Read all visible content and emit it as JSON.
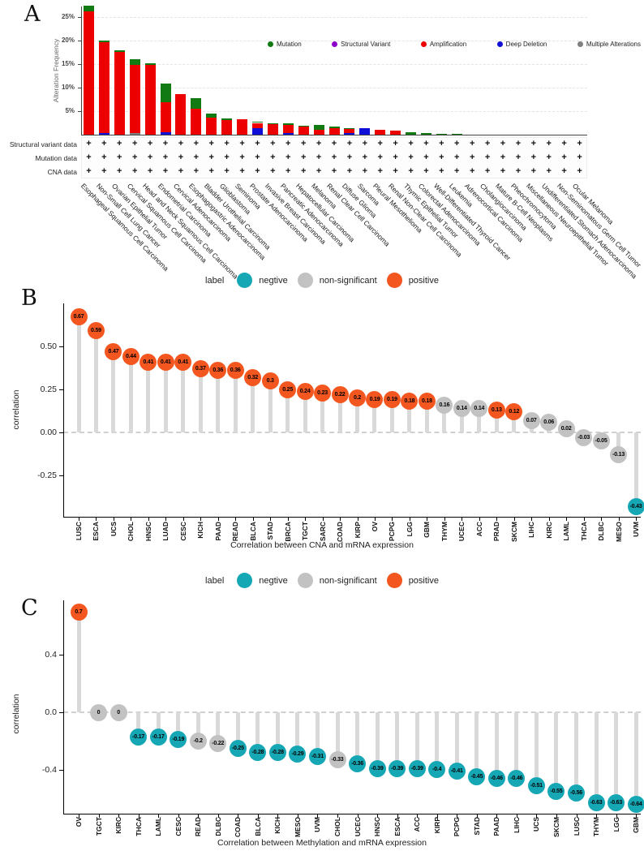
{
  "colors": {
    "mutation": "#127a12",
    "structural_variant": "#8b00c9",
    "amplification": "#ec0000",
    "deep_deletion": "#0f0fd8",
    "multiple": "#7f7f7f",
    "negative": "#16a7b5",
    "nonsig": "#c2c2c2",
    "positive": "#f3571f",
    "stem": "#d9d9d9"
  },
  "panelA": {
    "label": "A",
    "ylabel": "Alteration Frequency",
    "yticks": [
      {
        "v": 25,
        "t": "25%"
      },
      {
        "v": 20,
        "t": "20%"
      },
      {
        "v": 15,
        "t": "15%"
      },
      {
        "v": 10,
        "t": "10%"
      },
      {
        "v": 5,
        "t": "5%"
      }
    ],
    "legend": [
      {
        "key": "mutation",
        "label": "Mutation"
      },
      {
        "key": "structural_variant",
        "label": "Structural Variant"
      },
      {
        "key": "amplification",
        "label": "Amplification"
      },
      {
        "key": "deep_deletion",
        "label": "Deep Deletion"
      },
      {
        "key": "multiple",
        "label": "Multiple Alterations"
      }
    ],
    "tracks": [
      {
        "label": "Structural variant data"
      },
      {
        "label": "Mutation data"
      },
      {
        "label": "CNA data"
      }
    ],
    "plus_symbol": "+",
    "chart_data": {
      "type": "bar",
      "stacked": true,
      "ylabel": "Alteration Frequency",
      "ylim": [
        0,
        28
      ],
      "categories": [
        "Esophageal Squamous Cell Carcinoma",
        "Non-Small Cell Lung Cancer",
        "Ovarian Epithelial Tumor",
        "Cervical Squamous Cell Carcinoma",
        "Head and Neck Squamous Cell Carcinoma",
        "Endometrial Carcinoma",
        "Cervical Adenocarcinoma",
        "Esophagogastric Adenocarcinoma",
        "Bladder Urothelial Carcinoma",
        "Glioblastoma",
        "Seminoma",
        "Prostate Adenocarcinoma",
        "Invasive Breast Carcinoma",
        "Pancreatic Adenocarcinoma",
        "Hepatocellular Carcinoma",
        "Melanoma",
        "Renal Clear Cell Carcinoma",
        "Diffuse Glioma",
        "Sarcoma",
        "Pleural Mesothelioma",
        "Renal Non-Clear Cell Carcinoma",
        "Thymic Epithelial Tumor",
        "Colorectal Adenocarcinoma",
        "Well-Differentiated Thyroid Cancer",
        "Leukemia",
        "Adrenocortical Carcinoma",
        "Cholangiocarcinoma",
        "Mature B-Cell Neoplasms",
        "Pheochromocytoma",
        "Miscellaneous Neuroepithelial Tumor",
        "Undifferentiated Stomach Adenocarcinoma",
        "Non-Seminomatous Germ Cell Tumor",
        "Ocular Melanoma"
      ],
      "series": [
        {
          "name": "Multiple Alterations",
          "key": "multiple",
          "values": [
            0,
            0,
            0,
            0.4,
            0,
            0,
            0,
            0,
            0,
            0,
            0,
            0,
            0,
            0,
            0,
            0,
            0,
            0,
            0,
            0,
            0,
            0,
            0,
            0,
            0,
            0,
            0,
            0,
            0,
            0,
            0,
            0,
            0
          ]
        },
        {
          "name": "Deep Deletion",
          "key": "deep_deletion",
          "values": [
            0,
            0.4,
            0,
            0,
            0,
            0.5,
            0,
            0,
            0,
            0,
            0,
            1.3,
            0,
            0.3,
            0,
            0,
            0,
            0.3,
            1.3,
            0,
            0,
            0,
            0,
            0,
            0,
            0,
            0,
            0,
            0,
            0,
            0,
            0,
            0
          ]
        },
        {
          "name": "Amplification",
          "key": "amplification",
          "values": [
            26.2,
            19.2,
            17.6,
            14.4,
            14.9,
            6.4,
            8.7,
            5.6,
            3.7,
            3.1,
            3.2,
            1.2,
            2.2,
            1.7,
            1.7,
            1.0,
            1.4,
            0.9,
            0,
            1.0,
            0.9,
            0,
            0,
            0,
            0,
            0,
            0,
            0,
            0,
            0,
            0,
            0,
            0
          ]
        },
        {
          "name": "Mutation",
          "key": "mutation",
          "values": [
            1.2,
            0.4,
            0.4,
            1.2,
            0.3,
            3.9,
            0,
            2.2,
            0.8,
            0.3,
            0,
            0.3,
            0.2,
            0.5,
            0.2,
            1.1,
            0.4,
            0.2,
            0,
            0,
            0,
            0.5,
            0.3,
            0.1,
            0.1,
            0,
            0,
            0,
            0,
            0,
            0,
            0,
            0
          ]
        }
      ]
    }
  },
  "panelB": {
    "label": "B",
    "legend": {
      "title": "label",
      "items": [
        {
          "key": "negative",
          "label": "negtive"
        },
        {
          "key": "nonsig",
          "label": "non-significant"
        },
        {
          "key": "positive",
          "label": "positive"
        }
      ]
    },
    "ylabel": "correlation",
    "xlabel": "Correlation between CNA and mRNA expression",
    "yticks": [
      {
        "v": 0.5,
        "t": "0.50"
      },
      {
        "v": 0.25,
        "t": "0.25"
      },
      {
        "v": 0,
        "t": "0.00"
      },
      {
        "v": -0.25,
        "t": "-0.25"
      }
    ],
    "chart_data": {
      "type": "lollipop",
      "categories": [
        "LUSC",
        "ESCA",
        "UCS",
        "CHOL",
        "HNSC",
        "LUAD",
        "CESC",
        "KICH",
        "PAAD",
        "READ",
        "BLCA",
        "STAD",
        "BRCA",
        "TGCT",
        "SARC",
        "COAD",
        "KIRP",
        "OV",
        "PCPG",
        "LGG",
        "GBM",
        "THYM",
        "UCEC",
        "ACC",
        "PRAD",
        "SKCM",
        "LIHC",
        "KIRC",
        "LAML",
        "THCA",
        "DLBC",
        "MESO",
        "UVM"
      ],
      "values": [
        0.67,
        0.59,
        0.47,
        0.44,
        0.41,
        0.41,
        0.41,
        0.37,
        0.36,
        0.36,
        0.32,
        0.3,
        0.25,
        0.24,
        0.23,
        0.22,
        0.2,
        0.19,
        0.19,
        0.18,
        0.18,
        0.16,
        0.14,
        0.14,
        0.13,
        0.12,
        0.07,
        0.06,
        0.02,
        -0.03,
        -0.05,
        -0.13,
        -0.43
      ],
      "point_labels": [
        "0.67",
        "0.59",
        "0.47",
        "0.44",
        "0.41",
        "0.41",
        "0.41",
        "0.37",
        "0.36",
        "0.36",
        "0.32",
        "0.3",
        "0.25",
        "0.24",
        "0.23",
        "0.22",
        "0.2",
        "0.19",
        "0.19",
        "0.18",
        "0.18",
        "0.16",
        "0.14",
        "0.14",
        "0.13",
        "0.12",
        "0.07",
        "0.06",
        "0.02",
        "-0.03",
        "-0.05",
        "-0.13",
        "-0.43"
      ],
      "classes": [
        "positive",
        "positive",
        "positive",
        "positive",
        "positive",
        "positive",
        "positive",
        "positive",
        "positive",
        "positive",
        "positive",
        "positive",
        "positive",
        "positive",
        "positive",
        "positive",
        "positive",
        "positive",
        "positive",
        "positive",
        "positive",
        "nonsig",
        "nonsig",
        "nonsig",
        "positive",
        "positive",
        "nonsig",
        "nonsig",
        "nonsig",
        "nonsig",
        "nonsig",
        "nonsig",
        "negative"
      ]
    }
  },
  "panelC": {
    "label": "C",
    "legend": {
      "title": "label",
      "items": [
        {
          "key": "negative",
          "label": "negtive"
        },
        {
          "key": "nonsig",
          "label": "non-significant"
        },
        {
          "key": "positive",
          "label": "positive"
        }
      ]
    },
    "ylabel": "correlation",
    "xlabel": "Correlation between Methylation and mRNA expression",
    "yticks": [
      {
        "v": 0.4,
        "t": "0.4"
      },
      {
        "v": 0,
        "t": "0.0"
      },
      {
        "v": -0.4,
        "t": "-0.4"
      }
    ],
    "chart_data": {
      "type": "lollipop",
      "categories": [
        "OV",
        "TGCT",
        "KIRC",
        "THCA",
        "LAML",
        "CESC",
        "READ",
        "DLBC",
        "COAD",
        "BLCA",
        "KICH",
        "MESO",
        "UVM",
        "CHOL",
        "UCEC",
        "HNSC",
        "ESCA",
        "ACC",
        "KIRP",
        "PCPG",
        "STAD",
        "PAAD",
        "LIHC",
        "UCS",
        "SKCM",
        "LUSC",
        "THYM",
        "LGG",
        "GBM"
      ],
      "values": [
        0.7,
        0,
        0,
        -0.17,
        -0.17,
        -0.19,
        -0.2,
        -0.22,
        -0.25,
        -0.28,
        -0.28,
        -0.29,
        -0.31,
        -0.33,
        -0.36,
        -0.39,
        -0.39,
        -0.39,
        -0.4,
        -0.41,
        -0.45,
        -0.46,
        -0.46,
        -0.51,
        -0.55,
        -0.56,
        -0.63,
        -0.63,
        -0.64
      ],
      "point_labels": [
        "0.7",
        "0",
        "0",
        "-0.17",
        "-0.17",
        "-0.19",
        "-0.2",
        "-0.22",
        "-0.25",
        "-0.28",
        "-0.28",
        "-0.29",
        "-0.31",
        "-0.33",
        "-0.36",
        "-0.39",
        "-0.39",
        "-0.39",
        "-0.4",
        "-0.41",
        "-0.45",
        "-0.46",
        "-0.46",
        "-0.51",
        "-0.55",
        "-0.56",
        "-0.63",
        "-0.63",
        "-0.64"
      ],
      "classes": [
        "positive",
        "nonsig",
        "nonsig",
        "negative",
        "negative",
        "negative",
        "nonsig",
        "nonsig",
        "negative",
        "negative",
        "negative",
        "negative",
        "negative",
        "nonsig",
        "negative",
        "negative",
        "negative",
        "negative",
        "negative",
        "negative",
        "negative",
        "negative",
        "negative",
        "negative",
        "negative",
        "negative",
        "negative",
        "negative",
        "negative"
      ]
    }
  }
}
